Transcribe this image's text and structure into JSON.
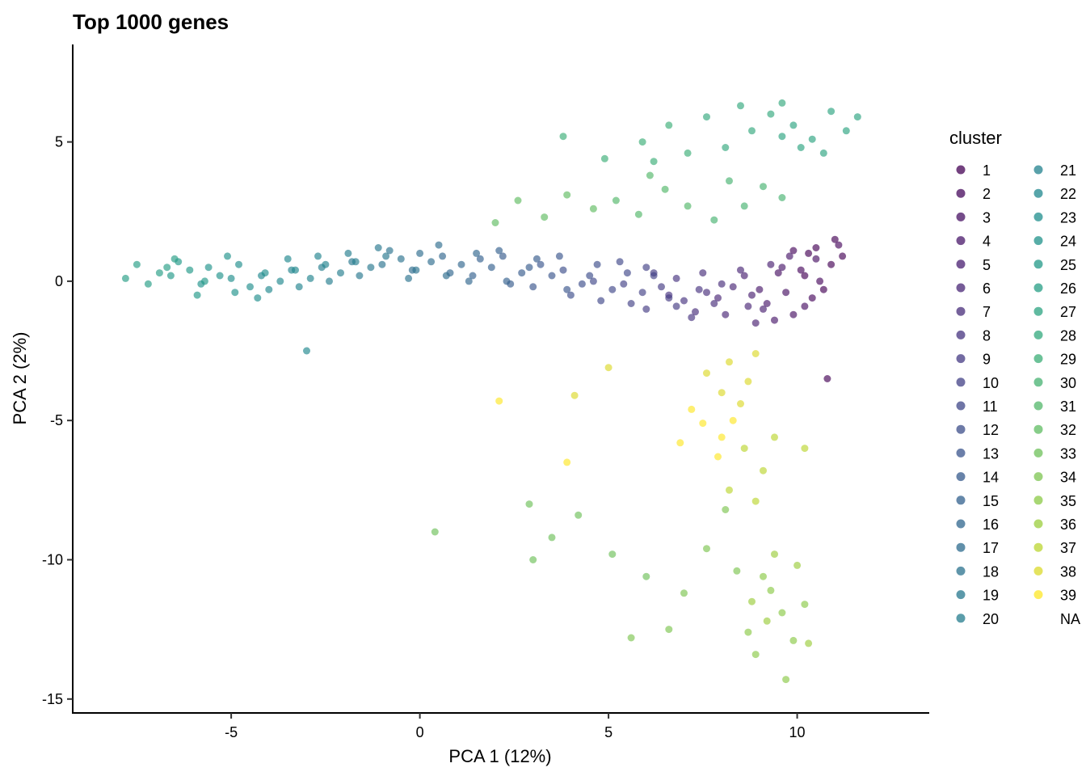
{
  "chart_data": {
    "type": "scatter",
    "title": "Top 1000 genes",
    "xlabel": "PCA 1 (12%)",
    "ylabel": "PCA 2 (2%)",
    "xlim": [
      -9.2,
      13.5
    ],
    "ylim": [
      -15.5,
      8.5
    ],
    "x_ticks": [
      -5,
      0,
      5,
      10
    ],
    "x_tick_labels": [
      "-5",
      "0",
      "5",
      "10"
    ],
    "y_ticks": [
      5,
      0,
      -5,
      -10,
      -15
    ],
    "y_tick_labels": [
      "5",
      "0",
      "-5",
      "-10",
      "-15"
    ],
    "grid": false,
    "legend": {
      "title": "cluster",
      "placement": "right",
      "entries": [
        "1",
        "2",
        "3",
        "4",
        "5",
        "6",
        "7",
        "8",
        "9",
        "10",
        "11",
        "12",
        "13",
        "14",
        "15",
        "16",
        "17",
        "18",
        "19",
        "20",
        "21",
        "22",
        "23",
        "24",
        "25",
        "26",
        "27",
        "28",
        "29",
        "30",
        "31",
        "32",
        "33",
        "34",
        "35",
        "36",
        "37",
        "38",
        "39",
        "NA"
      ]
    },
    "point_opacity": 0.65,
    "series": [
      {
        "name": "1",
        "color": "#440154",
        "points": [
          [
            10.5,
            1.2
          ],
          [
            10.9,
            0.6
          ],
          [
            10.2,
            0.2
          ],
          [
            11.0,
            1.5
          ],
          [
            10.7,
            -0.3
          ],
          [
            10.3,
            1.0
          ],
          [
            11.2,
            0.9
          ],
          [
            10.8,
            -3.5
          ]
        ]
      },
      {
        "name": "2",
        "color": "#46085c",
        "points": [
          [
            10.1,
            0.4
          ],
          [
            10.6,
            0.0
          ],
          [
            9.9,
            1.1
          ],
          [
            10.4,
            -0.6
          ],
          [
            11.1,
            1.3
          ]
        ]
      },
      {
        "name": "3",
        "color": "#471063",
        "points": [
          [
            9.7,
            -0.4
          ],
          [
            10.2,
            -0.9
          ],
          [
            9.5,
            0.3
          ],
          [
            9.9,
            -1.2
          ],
          [
            10.5,
            0.8
          ]
        ]
      },
      {
        "name": "4",
        "color": "#48176a",
        "points": [
          [
            9.2,
            -0.8
          ],
          [
            9.6,
            0.5
          ],
          [
            9.0,
            -0.3
          ],
          [
            9.4,
            -1.4
          ],
          [
            9.8,
            0.9
          ]
        ]
      },
      {
        "name": "5",
        "color": "#481e70",
        "points": [
          [
            8.8,
            -0.5
          ],
          [
            9.1,
            -1.0
          ],
          [
            8.6,
            0.2
          ],
          [
            8.9,
            -1.5
          ],
          [
            9.3,
            0.6
          ]
        ]
      },
      {
        "name": "6",
        "color": "#482575",
        "points": [
          [
            8.3,
            -0.2
          ],
          [
            8.7,
            -0.9
          ],
          [
            8.1,
            -1.2
          ],
          [
            8.5,
            0.4
          ],
          [
            7.9,
            -0.6
          ]
        ]
      },
      {
        "name": "7",
        "color": "#472c7a",
        "points": [
          [
            7.6,
            -0.4
          ],
          [
            8.0,
            -0.1
          ],
          [
            7.3,
            -1.1
          ],
          [
            7.8,
            -0.8
          ],
          [
            7.5,
            0.3
          ]
        ]
      },
      {
        "name": "8",
        "color": "#46337f",
        "points": [
          [
            7.0,
            -0.7
          ],
          [
            7.4,
            -0.3
          ],
          [
            6.8,
            0.1
          ],
          [
            7.2,
            -1.3
          ],
          [
            6.6,
            -0.5
          ]
        ]
      },
      {
        "name": "9",
        "color": "#443a83",
        "points": [
          [
            6.4,
            -0.2
          ],
          [
            6.8,
            -0.9
          ],
          [
            6.2,
            0.3
          ],
          [
            6.6,
            -0.6
          ],
          [
            6.0,
            -1.0
          ]
        ]
      },
      {
        "name": "10",
        "color": "#424086",
        "points": [
          [
            5.9,
            -0.4
          ],
          [
            6.2,
            0.2
          ],
          [
            5.6,
            -0.8
          ],
          [
            6.0,
            0.5
          ],
          [
            5.4,
            -0.1
          ]
        ]
      },
      {
        "name": "11",
        "color": "#3f4788",
        "points": [
          [
            5.1,
            -0.3
          ],
          [
            5.5,
            0.3
          ],
          [
            4.8,
            -0.7
          ],
          [
            5.3,
            0.7
          ],
          [
            4.6,
            0.0
          ]
        ]
      },
      {
        "name": "12",
        "color": "#3c4d8a",
        "points": [
          [
            4.3,
            -0.1
          ],
          [
            4.7,
            0.6
          ],
          [
            4.0,
            -0.5
          ],
          [
            4.5,
            0.2
          ],
          [
            3.8,
            0.4
          ]
        ]
      },
      {
        "name": "13",
        "color": "#39548c",
        "points": [
          [
            3.5,
            0.2
          ],
          [
            3.9,
            -0.3
          ],
          [
            3.2,
            0.6
          ],
          [
            3.7,
            0.9
          ],
          [
            3.0,
            -0.2
          ]
        ]
      },
      {
        "name": "14",
        "color": "#355a8c",
        "points": [
          [
            2.7,
            0.3
          ],
          [
            3.1,
            0.8
          ],
          [
            2.4,
            -0.1
          ],
          [
            2.9,
            0.5
          ],
          [
            2.2,
            0.9
          ]
        ]
      },
      {
        "name": "15",
        "color": "#32608d",
        "points": [
          [
            1.9,
            0.5
          ],
          [
            2.3,
            0.0
          ],
          [
            1.6,
            0.8
          ],
          [
            2.1,
            1.1
          ],
          [
            1.4,
            0.2
          ]
        ]
      },
      {
        "name": "16",
        "color": "#2f658e",
        "points": [
          [
            1.1,
            0.6
          ],
          [
            1.5,
            1.0
          ],
          [
            0.8,
            0.3
          ],
          [
            1.3,
            0.0
          ],
          [
            0.6,
            0.9
          ]
        ]
      },
      {
        "name": "17",
        "color": "#2c6b8e",
        "points": [
          [
            0.3,
            0.7
          ],
          [
            0.7,
            0.2
          ],
          [
            0.0,
            1.0
          ],
          [
            0.5,
            1.3
          ],
          [
            -0.2,
            0.4
          ]
        ]
      },
      {
        "name": "18",
        "color": "#29718e",
        "points": [
          [
            -0.5,
            0.8
          ],
          [
            -0.1,
            0.4
          ],
          [
            -0.8,
            1.1
          ],
          [
            -0.3,
            0.1
          ],
          [
            -1.0,
            0.6
          ]
        ]
      },
      {
        "name": "19",
        "color": "#26778e",
        "points": [
          [
            -1.3,
            0.5
          ],
          [
            -0.9,
            0.9
          ],
          [
            -1.6,
            0.2
          ],
          [
            -1.1,
            1.2
          ],
          [
            -1.8,
            0.7
          ]
        ]
      },
      {
        "name": "20",
        "color": "#247c8e",
        "points": [
          [
            -2.1,
            0.3
          ],
          [
            -1.7,
            0.7
          ],
          [
            -2.4,
            0.0
          ],
          [
            -1.9,
            1.0
          ],
          [
            -2.6,
            0.5
          ]
        ]
      },
      {
        "name": "21",
        "color": "#21828e",
        "points": [
          [
            -2.9,
            0.1
          ],
          [
            -2.5,
            0.6
          ],
          [
            -3.2,
            -0.2
          ],
          [
            -2.7,
            0.9
          ],
          [
            -3.4,
            0.4
          ]
        ]
      },
      {
        "name": "22",
        "color": "#1f878d",
        "points": [
          [
            -3.7,
            0.0
          ],
          [
            -3.3,
            0.4
          ],
          [
            -4.0,
            -0.3
          ],
          [
            -3.5,
            0.8
          ],
          [
            -4.2,
            0.2
          ],
          [
            -3.0,
            -2.5
          ]
        ]
      },
      {
        "name": "23",
        "color": "#1e8d8c",
        "points": [
          [
            -4.5,
            -0.2
          ],
          [
            -4.1,
            0.3
          ],
          [
            -4.8,
            0.6
          ],
          [
            -4.3,
            -0.6
          ],
          [
            -5.0,
            0.1
          ]
        ]
      },
      {
        "name": "24",
        "color": "#1f928a",
        "points": [
          [
            -5.3,
            0.2
          ],
          [
            -4.9,
            -0.4
          ],
          [
            -5.6,
            0.5
          ],
          [
            -5.1,
            0.9
          ],
          [
            -5.8,
            -0.1
          ]
        ]
      },
      {
        "name": "25",
        "color": "#219887",
        "points": [
          [
            -6.1,
            0.4
          ],
          [
            -5.7,
            0.0
          ],
          [
            -6.4,
            0.7
          ],
          [
            -5.9,
            -0.5
          ],
          [
            -6.6,
            0.2
          ]
        ]
      },
      {
        "name": "26",
        "color": "#259d84",
        "points": [
          [
            -6.9,
            0.3
          ],
          [
            -6.5,
            0.8
          ],
          [
            -7.2,
            -0.1
          ],
          [
            -6.7,
            0.5
          ],
          [
            -7.5,
            0.6
          ],
          [
            -7.8,
            0.1
          ]
        ]
      },
      {
        "name": "27",
        "color": "#2ba380",
        "points": [
          [
            9.9,
            5.6
          ],
          [
            10.4,
            5.1
          ],
          [
            10.9,
            6.1
          ],
          [
            11.3,
            5.4
          ],
          [
            10.1,
            4.8
          ],
          [
            11.6,
            5.9
          ],
          [
            10.7,
            4.6
          ],
          [
            9.6,
            5.2
          ]
        ]
      },
      {
        "name": "28",
        "color": "#32a87c",
        "points": [
          [
            8.8,
            5.4
          ],
          [
            9.3,
            6.0
          ],
          [
            8.1,
            4.8
          ],
          [
            7.6,
            5.9
          ],
          [
            8.5,
            6.3
          ],
          [
            9.6,
            6.4
          ]
        ]
      },
      {
        "name": "29",
        "color": "#3bad76",
        "points": [
          [
            6.6,
            5.6
          ],
          [
            7.1,
            4.6
          ],
          [
            5.9,
            5.0
          ],
          [
            6.2,
            4.3
          ],
          [
            4.9,
            4.4
          ],
          [
            3.8,
            5.2
          ]
        ]
      },
      {
        "name": "30",
        "color": "#46b270",
        "points": [
          [
            9.1,
            3.4
          ],
          [
            8.6,
            2.7
          ],
          [
            9.6,
            3.0
          ],
          [
            8.2,
            3.6
          ],
          [
            7.8,
            2.2
          ]
        ]
      },
      {
        "name": "31",
        "color": "#52b769",
        "points": [
          [
            7.1,
            2.7
          ],
          [
            6.5,
            3.3
          ],
          [
            5.8,
            2.4
          ],
          [
            6.1,
            3.8
          ],
          [
            5.2,
            2.9
          ]
        ]
      },
      {
        "name": "32",
        "color": "#5fbc61",
        "points": [
          [
            4.6,
            2.6
          ],
          [
            3.9,
            3.1
          ],
          [
            3.3,
            2.3
          ],
          [
            2.6,
            2.9
          ],
          [
            2.0,
            2.1
          ]
        ]
      },
      {
        "name": "33",
        "color": "#6dc059",
        "points": [
          [
            4.2,
            -8.4
          ],
          [
            3.5,
            -9.2
          ],
          [
            2.9,
            -8.0
          ],
          [
            5.1,
            -9.8
          ],
          [
            6.0,
            -10.6
          ],
          [
            3.0,
            -10.0
          ],
          [
            0.4,
            -9.0
          ]
        ]
      },
      {
        "name": "34",
        "color": "#7cc450",
        "points": [
          [
            7.6,
            -9.6
          ],
          [
            8.1,
            -8.2
          ],
          [
            7.0,
            -11.2
          ],
          [
            6.6,
            -12.5
          ],
          [
            8.4,
            -10.4
          ],
          [
            5.6,
            -12.8
          ]
        ]
      },
      {
        "name": "35",
        "color": "#8bc946",
        "points": [
          [
            9.1,
            -10.6
          ],
          [
            9.6,
            -11.9
          ],
          [
            8.7,
            -12.6
          ],
          [
            9.9,
            -12.9
          ],
          [
            9.3,
            -11.1
          ],
          [
            8.9,
            -13.4
          ],
          [
            9.7,
            -14.3
          ],
          [
            10.2,
            -11.6
          ]
        ]
      },
      {
        "name": "36",
        "color": "#9bcd3c",
        "points": [
          [
            9.4,
            -9.8
          ],
          [
            8.8,
            -11.5
          ],
          [
            10.0,
            -10.2
          ],
          [
            9.2,
            -12.2
          ],
          [
            10.3,
            -13.0
          ]
        ]
      },
      {
        "name": "37",
        "color": "#bbd530",
        "points": [
          [
            8.6,
            -6.0
          ],
          [
            9.1,
            -6.8
          ],
          [
            8.2,
            -7.5
          ],
          [
            9.4,
            -5.6
          ],
          [
            10.2,
            -6.0
          ],
          [
            8.9,
            -7.9
          ]
        ]
      },
      {
        "name": "38",
        "color": "#dbd92a",
        "points": [
          [
            8.2,
            -2.9
          ],
          [
            8.7,
            -3.6
          ],
          [
            8.0,
            -4.0
          ],
          [
            8.9,
            -2.6
          ],
          [
            7.6,
            -3.3
          ],
          [
            8.5,
            -4.4
          ],
          [
            5.0,
            -3.1
          ],
          [
            4.1,
            -4.1
          ]
        ]
      },
      {
        "name": "39",
        "color": "#fde725",
        "points": [
          [
            7.5,
            -5.1
          ],
          [
            8.0,
            -5.6
          ],
          [
            7.2,
            -4.6
          ],
          [
            7.9,
            -6.3
          ],
          [
            6.9,
            -5.8
          ],
          [
            8.3,
            -5.0
          ],
          [
            3.9,
            -6.5
          ],
          [
            2.1,
            -4.3
          ]
        ]
      }
    ]
  }
}
